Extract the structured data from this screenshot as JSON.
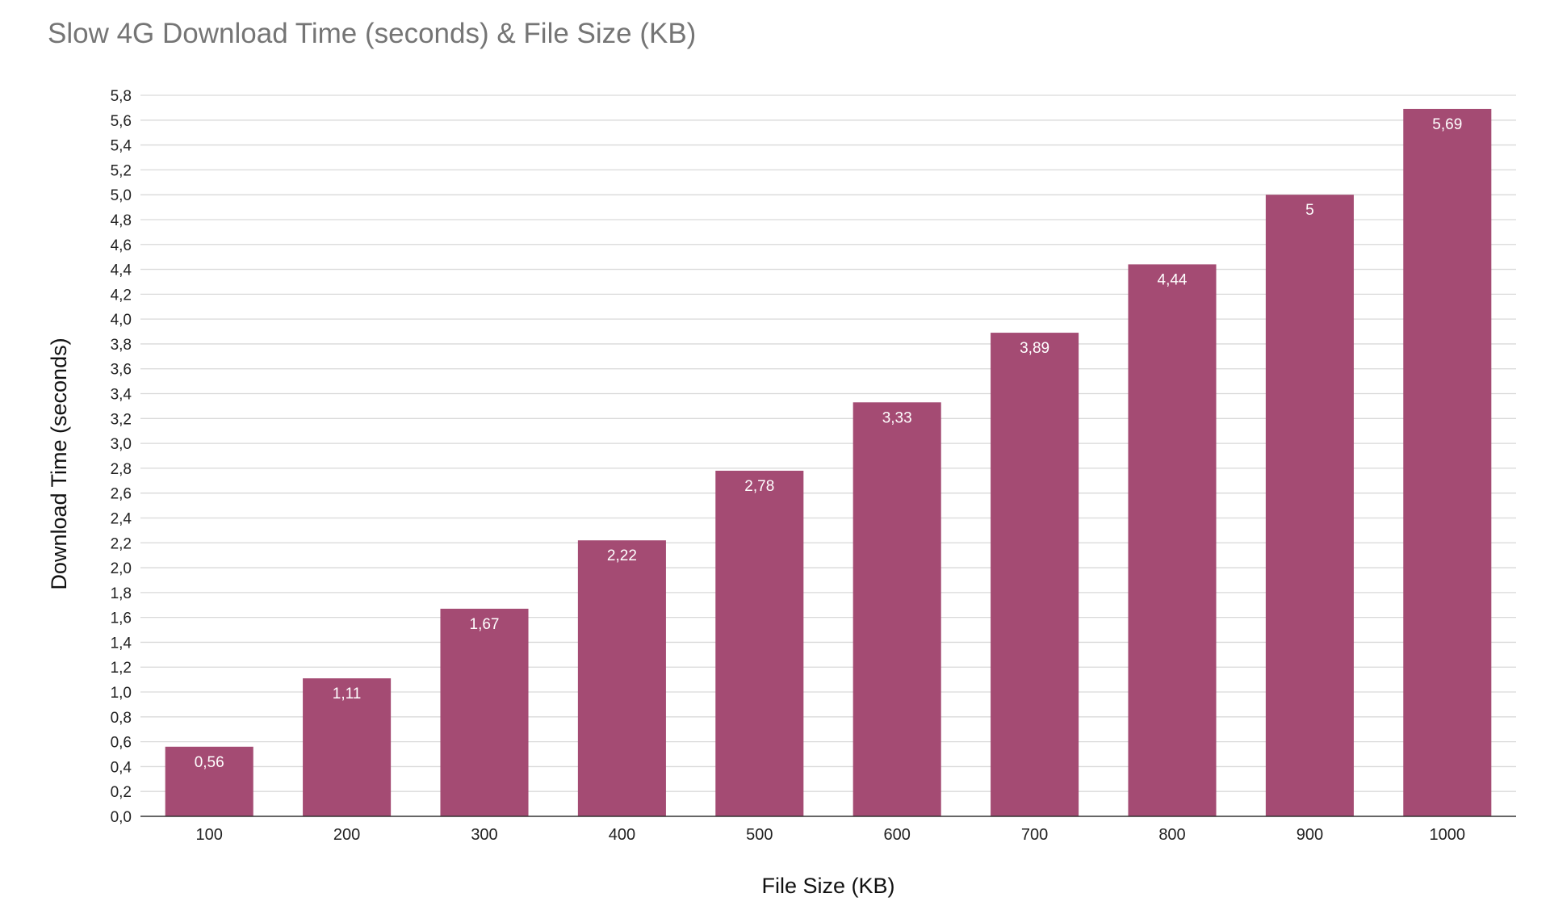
{
  "chart_data": {
    "type": "bar",
    "title": "Slow 4G Download Time (seconds) & File Size (KB)",
    "xlabel": "File Size (KB)",
    "ylabel": "Download Time (seconds)",
    "categories": [
      "100",
      "200",
      "300",
      "400",
      "500",
      "600",
      "700",
      "800",
      "900",
      "1000"
    ],
    "values": [
      0.56,
      1.11,
      1.67,
      2.22,
      2.78,
      3.33,
      3.89,
      4.44,
      5,
      5.69
    ],
    "data_labels": [
      "0,56",
      "1,11",
      "1,67",
      "2,22",
      "2,78",
      "3,33",
      "3,89",
      "4,44",
      "5",
      "5,69"
    ],
    "y_ticks": [
      "0,0",
      "0,2",
      "0,4",
      "0,6",
      "0,8",
      "1,0",
      "1,2",
      "1,4",
      "1,6",
      "1,8",
      "2,0",
      "2,2",
      "2,4",
      "2,6",
      "2,8",
      "3,0",
      "3,2",
      "3,4",
      "3,6",
      "3,8",
      "4,0",
      "4,2",
      "4,4",
      "4,6",
      "4,8",
      "5,0",
      "5,2",
      "5,4",
      "5,6",
      "5,8"
    ],
    "ylim": [
      0,
      5.8
    ],
    "grid": true,
    "legend": "none",
    "bar_color": "#a44b73",
    "gridline_color": "#d9d9d9",
    "title_color": "#757575"
  }
}
